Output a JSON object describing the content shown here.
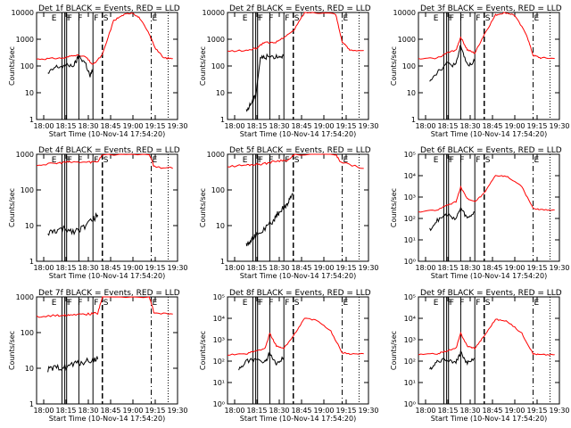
{
  "figure": {
    "colors": {
      "events": "#000000",
      "lld": "#ff0000",
      "background": "#ffffff"
    }
  },
  "chart_data": [
    {
      "type": "line",
      "title": "Det 1f BLACK = Events, RED = LLD",
      "xlabel": "Start Time (10-Nov-14 17:54:20)",
      "ylabel": "Counts/sec",
      "xticks": [
        "18:00",
        "18:15",
        "18:30",
        "18:45",
        "19:00",
        "19:15",
        "19:30"
      ],
      "yscale": "log",
      "ylim": [
        1,
        10000
      ],
      "yticks": [
        "1",
        "10",
        "100",
        "1000",
        "10000"
      ],
      "xlim_minutes": [
        17.9,
        35.3
      ],
      "markers": [
        "E",
        "F",
        "F",
        "F",
        "F",
        "S",
        "E"
      ],
      "series": [
        {
          "color": "red",
          "points": [
            [
              17.9,
              180
            ],
            [
              18.05,
              190
            ],
            [
              18.2,
              200
            ],
            [
              18.3,
              260
            ],
            [
              18.42,
              220
            ],
            [
              18.5,
              110
            ],
            [
              18.6,
              260
            ],
            [
              18.72,
              5000
            ],
            [
              18.82,
              8000
            ],
            [
              18.92,
              10000
            ],
            [
              19.0,
              6000
            ],
            [
              19.1,
              1500
            ],
            [
              19.16,
              500
            ],
            [
              19.25,
              200
            ],
            [
              19.35,
              190
            ]
          ]
        },
        {
          "color": "black",
          "points": [
            [
              18.02,
              50
            ],
            [
              18.1,
              90
            ],
            [
              18.2,
              100
            ],
            [
              18.3,
              110
            ],
            [
              18.35,
              230
            ],
            [
              18.42,
              130
            ],
            [
              18.47,
              40
            ],
            [
              18.5,
              80
            ]
          ]
        }
      ]
    },
    {
      "type": "line",
      "title": "Det 2f BLACK = Events, RED = LLD",
      "xlabel": "Start Time (10-Nov-14 17:54:20)",
      "ylabel": "Counts/sec",
      "xticks": [
        "18:00",
        "18:15",
        "18:30",
        "18:45",
        "19:00",
        "19:15",
        "19:30"
      ],
      "yscale": "log",
      "ylim": [
        1,
        10000
      ],
      "yticks": [
        "1",
        "10",
        "100",
        "1000",
        "10000"
      ],
      "xlim_minutes": [
        17.9,
        35.3
      ],
      "markers": [
        "E",
        "F",
        "F",
        "F",
        "F",
        "S",
        "E"
      ],
      "series": [
        {
          "color": "red",
          "points": [
            [
              17.9,
              350
            ],
            [
              18.1,
              380
            ],
            [
              18.2,
              450
            ],
            [
              18.3,
              800
            ],
            [
              18.4,
              700
            ],
            [
              18.5,
              1200
            ],
            [
              18.6,
              2000
            ],
            [
              18.72,
              10000
            ],
            [
              18.85,
              10000
            ],
            [
              19.05,
              9000
            ],
            [
              19.12,
              800
            ],
            [
              19.2,
              400
            ],
            [
              19.35,
              380
            ]
          ]
        },
        {
          "color": "black",
          "points": [
            [
              18.1,
              2
            ],
            [
              18.15,
              4
            ],
            [
              18.2,
              8
            ],
            [
              18.25,
              200
            ],
            [
              18.32,
              220
            ],
            [
              18.42,
              230
            ],
            [
              18.5,
              240
            ]
          ]
        }
      ]
    },
    {
      "type": "line",
      "title": "Det 3f BLACK = Events, RED = LLD",
      "xlabel": "Start Time (10-Nov-14 17:54:20)",
      "ylabel": "Counts/sec",
      "xticks": [
        "18:00",
        "18:15",
        "18:30",
        "18:45",
        "19:00",
        "19:15",
        "19:30"
      ],
      "yscale": "log",
      "ylim": [
        1,
        10000
      ],
      "yticks": [
        "1",
        "10",
        "100",
        "1000",
        "10000"
      ],
      "xlim_minutes": [
        17.9,
        35.3
      ],
      "markers": [
        "E",
        "F",
        "F",
        "F",
        "F",
        "S",
        "E"
      ],
      "series": [
        {
          "color": "red",
          "points": [
            [
              17.9,
              180
            ],
            [
              18.1,
              200
            ],
            [
              18.2,
              300
            ],
            [
              18.3,
              400
            ],
            [
              18.35,
              1200
            ],
            [
              18.42,
              400
            ],
            [
              18.5,
              300
            ],
            [
              18.6,
              1500
            ],
            [
              18.72,
              8000
            ],
            [
              18.82,
              10000
            ],
            [
              18.92,
              8000
            ],
            [
              19.05,
              1500
            ],
            [
              19.12,
              250
            ],
            [
              19.2,
              200
            ],
            [
              19.35,
              190
            ]
          ]
        },
        {
          "color": "black",
          "points": [
            [
              18.02,
              30
            ],
            [
              18.1,
              60
            ],
            [
              18.2,
              120
            ],
            [
              18.3,
              110
            ],
            [
              18.35,
              600
            ],
            [
              18.42,
              100
            ],
            [
              18.5,
              150
            ]
          ]
        }
      ]
    },
    {
      "type": "line",
      "title": "Det 4f BLACK = Events, RED = LLD",
      "xlabel": "Start Time (10-Nov-14 17:54:20)",
      "ylabel": "Counts/sec",
      "xticks": [
        "18:00",
        "18:15",
        "18:30",
        "18:45",
        "19:00",
        "19:15",
        "19:30"
      ],
      "yscale": "log",
      "ylim": [
        1,
        1000
      ],
      "yticks": [
        "1",
        "10",
        "100",
        "1000"
      ],
      "xlim_minutes": [
        17.9,
        35.3
      ],
      "markers": [
        "E",
        "F",
        "F",
        "F",
        "F",
        "S",
        "E"
      ],
      "series": [
        {
          "color": "red",
          "points": [
            [
              17.9,
              500
            ],
            [
              18.1,
              550
            ],
            [
              18.2,
              600
            ],
            [
              18.3,
              600
            ],
            [
              18.45,
              600
            ],
            [
              18.55,
              620
            ],
            [
              18.6,
              1000
            ],
            [
              19.1,
              1000
            ],
            [
              19.15,
              450
            ],
            [
              19.35,
              400
            ]
          ]
        },
        {
          "color": "black",
          "points": [
            [
              18.02,
              6
            ],
            [
              18.1,
              7
            ],
            [
              18.2,
              8
            ],
            [
              18.3,
              7
            ],
            [
              18.4,
              9
            ],
            [
              18.5,
              15
            ],
            [
              18.55,
              20
            ]
          ]
        }
      ]
    },
    {
      "type": "line",
      "title": "Det 5f BLACK = Events, RED = LLD",
      "xlabel": "Start Time (10-Nov-14 17:54:20)",
      "ylabel": "Counts/sec",
      "xticks": [
        "18:00",
        "18:15",
        "18:30",
        "18:45",
        "19:00",
        "19:15",
        "19:30"
      ],
      "yscale": "log",
      "ylim": [
        1,
        1000
      ],
      "yticks": [
        "1",
        "10",
        "100",
        "1000"
      ],
      "xlim_minutes": [
        17.9,
        35.3
      ],
      "markers": [
        "E",
        "F",
        "F",
        "F",
        "F",
        "S",
        "E"
      ],
      "series": [
        {
          "color": "red",
          "points": [
            [
              17.9,
              450
            ],
            [
              18.1,
              500
            ],
            [
              18.2,
              520
            ],
            [
              18.3,
              550
            ],
            [
              18.42,
              650
            ],
            [
              18.55,
              700
            ],
            [
              18.62,
              1000
            ],
            [
              19.05,
              1000
            ],
            [
              19.1,
              600
            ],
            [
              19.35,
              400
            ]
          ]
        },
        {
          "color": "black",
          "points": [
            [
              18.1,
              3
            ],
            [
              18.15,
              4
            ],
            [
              18.2,
              5
            ],
            [
              18.3,
              8
            ],
            [
              18.4,
              15
            ],
            [
              18.45,
              25
            ],
            [
              18.5,
              30
            ],
            [
              18.55,
              50
            ],
            [
              18.6,
              80
            ]
          ]
        }
      ]
    },
    {
      "type": "line",
      "title": "Det 6f BLACK = Events, RED = LLD",
      "xlabel": "Start Time (10-Nov-14 17:54:20)",
      "ylabel": "Counts/sec",
      "xticks": [
        "18:00",
        "18:15",
        "18:30",
        "18:45",
        "19:00",
        "19:15",
        "19:30"
      ],
      "yscale": "log",
      "ylim": [
        1,
        100000
      ],
      "yticks": [
        "10⁰",
        "10¹",
        "10²",
        "10³",
        "10⁴",
        "10⁵"
      ],
      "xlim_minutes": [
        17.9,
        35.3
      ],
      "markers": [
        "E",
        "F",
        "F",
        "F",
        "F",
        "S",
        "E"
      ],
      "series": [
        {
          "color": "red",
          "points": [
            [
              17.9,
              200
            ],
            [
              18.1,
              250
            ],
            [
              18.2,
              400
            ],
            [
              18.3,
              600
            ],
            [
              18.35,
              3000
            ],
            [
              18.42,
              800
            ],
            [
              18.5,
              600
            ],
            [
              18.6,
              1500
            ],
            [
              18.72,
              10000
            ],
            [
              18.85,
              9000
            ],
            [
              19.0,
              3000
            ],
            [
              19.12,
              300
            ],
            [
              19.2,
              250
            ],
            [
              19.35,
              250
            ]
          ]
        },
        {
          "color": "black",
          "points": [
            [
              18.02,
              30
            ],
            [
              18.1,
              80
            ],
            [
              18.2,
              150
            ],
            [
              18.3,
              100
            ],
            [
              18.35,
              300
            ],
            [
              18.42,
              100
            ],
            [
              18.5,
              200
            ]
          ]
        }
      ]
    },
    {
      "type": "line",
      "title": "Det 7f BLACK = Events, RED = LLD",
      "xlabel": "Start Time (10-Nov-14 17:54:20)",
      "ylabel": "Counts/sec",
      "xticks": [
        "18:00",
        "18:15",
        "18:30",
        "18:45",
        "19:00",
        "19:15",
        "19:30"
      ],
      "yscale": "log",
      "ylim": [
        1,
        1000
      ],
      "yticks": [
        "1",
        "10",
        "100",
        "1000"
      ],
      "xlim_minutes": [
        17.9,
        35.3
      ],
      "markers": [
        "E",
        "F",
        "F",
        "F",
        "F",
        "S",
        "E"
      ],
      "series": [
        {
          "color": "red",
          "points": [
            [
              17.9,
              280
            ],
            [
              18.1,
              300
            ],
            [
              18.2,
              310
            ],
            [
              18.3,
              330
            ],
            [
              18.45,
              330
            ],
            [
              18.55,
              350
            ],
            [
              18.6,
              1000
            ],
            [
              19.1,
              1000
            ],
            [
              19.15,
              350
            ],
            [
              19.35,
              330
            ]
          ]
        },
        {
          "color": "black",
          "points": [
            [
              18.02,
              9
            ],
            [
              18.1,
              10
            ],
            [
              18.2,
              11
            ],
            [
              18.3,
              13
            ],
            [
              18.4,
              15
            ],
            [
              18.5,
              17
            ],
            [
              18.55,
              18
            ]
          ]
        }
      ]
    },
    {
      "type": "line",
      "title": "Det 8f BLACK = Events, RED = LLD",
      "xlabel": "Start Time (10-Nov-14 17:54:20)",
      "ylabel": "Counts/sec",
      "xticks": [
        "18:00",
        "18:15",
        "18:30",
        "18:45",
        "19:00",
        "19:15",
        "19:30"
      ],
      "yscale": "log",
      "ylim": [
        1,
        100000
      ],
      "yticks": [
        "10⁰",
        "10¹",
        "10²",
        "10³",
        "10⁴",
        "10⁵"
      ],
      "xlim_minutes": [
        17.9,
        35.3
      ],
      "markers": [
        "E",
        "F",
        "F",
        "F",
        "F",
        "S",
        "E"
      ],
      "series": [
        {
          "color": "red",
          "points": [
            [
              17.9,
              200
            ],
            [
              18.1,
              220
            ],
            [
              18.2,
              300
            ],
            [
              18.3,
              400
            ],
            [
              18.35,
              2000
            ],
            [
              18.42,
              500
            ],
            [
              18.5,
              400
            ],
            [
              18.6,
              1500
            ],
            [
              18.72,
              10000
            ],
            [
              18.85,
              8000
            ],
            [
              19.0,
              2500
            ],
            [
              19.12,
              250
            ],
            [
              19.2,
              220
            ],
            [
              19.35,
              220
            ]
          ]
        },
        {
          "color": "black",
          "points": [
            [
              18.02,
              40
            ],
            [
              18.1,
              100
            ],
            [
              18.2,
              120
            ],
            [
              18.3,
              90
            ],
            [
              18.35,
              250
            ],
            [
              18.42,
              80
            ],
            [
              18.5,
              150
            ]
          ]
        }
      ]
    },
    {
      "type": "line",
      "title": "Det 9f BLACK = Events, RED = LLD",
      "xlabel": "Start Time (10-Nov-14 17:54:20)",
      "ylabel": "Counts/sec",
      "xticks": [
        "18:00",
        "18:15",
        "18:30",
        "18:45",
        "19:00",
        "19:15",
        "19:30"
      ],
      "yscale": "log",
      "ylim": [
        1,
        100000
      ],
      "yticks": [
        "10⁰",
        "10¹",
        "10²",
        "10³",
        "10⁴",
        "10⁵"
      ],
      "xlim_minutes": [
        17.9,
        35.3
      ],
      "markers": [
        "E",
        "F",
        "F",
        "F",
        "F",
        "S",
        "E"
      ],
      "series": [
        {
          "color": "red",
          "points": [
            [
              17.9,
              200
            ],
            [
              18.1,
              220
            ],
            [
              18.2,
              300
            ],
            [
              18.3,
              400
            ],
            [
              18.35,
              2000
            ],
            [
              18.42,
              500
            ],
            [
              18.5,
              400
            ],
            [
              18.6,
              1500
            ],
            [
              18.72,
              9000
            ],
            [
              18.85,
              7000
            ],
            [
              19.0,
              2000
            ],
            [
              19.12,
              220
            ],
            [
              19.2,
              200
            ],
            [
              19.35,
              200
            ]
          ]
        },
        {
          "color": "black",
          "points": [
            [
              18.02,
              40
            ],
            [
              18.1,
              100
            ],
            [
              18.2,
              120
            ],
            [
              18.3,
              90
            ],
            [
              18.35,
              250
            ],
            [
              18.42,
              80
            ],
            [
              18.5,
              140
            ]
          ]
        }
      ]
    }
  ]
}
